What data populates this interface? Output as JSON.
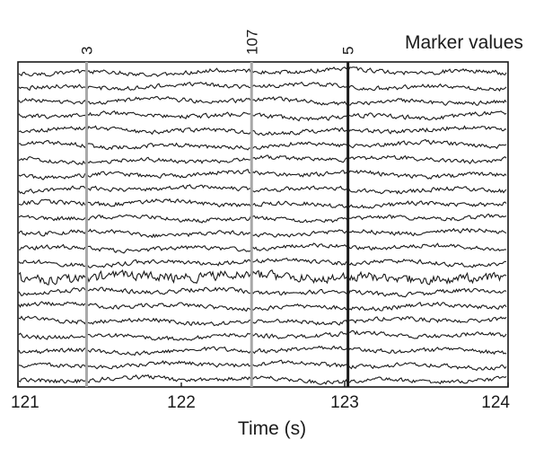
{
  "chart_data": {
    "type": "line",
    "title": "",
    "xlabel": "Time (s)",
    "ylabel": "",
    "xlim": [
      121,
      124
    ],
    "x_ticks": [
      121,
      122,
      123,
      124
    ],
    "x_tick_labels": [
      "121",
      "122",
      "123",
      "124"
    ],
    "grid": false,
    "channel_count": 22,
    "series_color": "#1a1a1a",
    "markers_title": "Marker values",
    "markers": [
      {
        "time": 121.42,
        "label": "3",
        "color": "#a8a8a8"
      },
      {
        "time": 122.43,
        "label": "107",
        "color": "#a8a8a8"
      },
      {
        "time": 123.02,
        "label": "5",
        "color": "#1a1a1a"
      }
    ],
    "noise_bursts": [
      {
        "channel": 14,
        "level": 2.2
      }
    ]
  }
}
